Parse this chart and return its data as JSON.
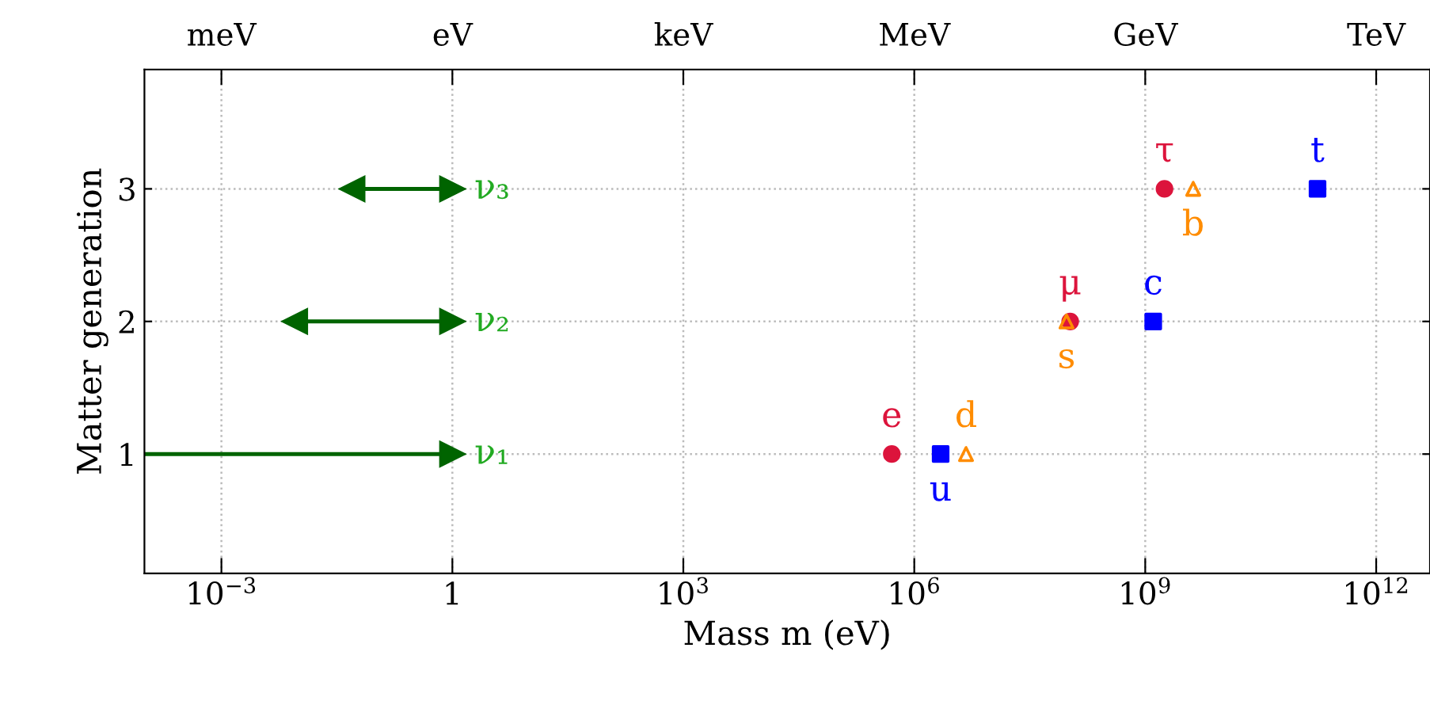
{
  "chart_data": {
    "type": "scatter",
    "xlabel": "Mass m (eV)",
    "ylabel": "Matter generation",
    "log": "x",
    "grid": true,
    "legend": false,
    "xlim": [
      0.0001,
      5000000000000.0
    ],
    "ylim": [
      0.1,
      3.9
    ],
    "xticks": [
      {
        "value": 0.001,
        "label": "10$^{−3}$"
      },
      1,
      {
        "value": 1000,
        "label": "10$^{3}$"
      },
      {
        "value": 1000000,
        "label": "10$^{6}$"
      },
      {
        "value": 1000000000,
        "label": "10$^{9}$"
      },
      {
        "value": 1000000000000,
        "label": "10$^{12}$"
      }
    ],
    "annotations": [
      "meV",
      "eV",
      "keV",
      "MeV",
      "GeV",
      "TeV"
    ],
    "yticks": [
      1,
      2,
      3
    ],
    "series": [
      {
        "type": "line",
        "name": "ν₁",
        "color": "#006400",
        "marker": "triangle",
        "x": [
          0.0001,
          1
        ],
        "values": [
          1,
          1
        ]
      },
      {
        "type": "line",
        "name": "ν₂",
        "color": "#006400",
        "marker": "triangle",
        "x": [
          0.009,
          1
        ],
        "values": [
          2,
          2
        ]
      },
      {
        "type": "line",
        "name": "ν₃",
        "color": "#006400",
        "marker": "triangle",
        "x": [
          0.05,
          1
        ],
        "values": [
          3,
          3
        ]
      },
      {
        "name": "e",
        "color": "#dc143c",
        "marker": "circle",
        "x": [
          510000
        ],
        "values": [
          1
        ]
      },
      {
        "name": "d",
        "color": "#ff8c00",
        "marker": "triangle",
        "x": [
          4700000
        ],
        "values": [
          1
        ]
      },
      {
        "name": "u",
        "color": "#0000ff",
        "marker": "square",
        "x": [
          2200000
        ],
        "values": [
          1
        ]
      },
      {
        "name": "μ",
        "color": "#dc143c",
        "marker": "circle",
        "x": [
          106000000
        ],
        "values": [
          2
        ]
      },
      {
        "name": "s",
        "color": "#ff8c00",
        "marker": "triangle",
        "x": [
          95000000
        ],
        "values": [
          2
        ]
      },
      {
        "name": "τ",
        "color": "#dc143c",
        "marker": "circle",
        "x": [
          1780000000
        ],
        "values": [
          3
        ]
      },
      {
        "name": "b",
        "color": "#ff8c00",
        "marker": "triangle",
        "x": [
          4200000000
        ],
        "values": [
          3
        ]
      },
      {
        "name": "c",
        "color": "#0000ff",
        "marker": "square",
        "x": [
          1270000000
        ],
        "values": [
          2
        ]
      },
      {
        "name": "t",
        "color": "#0000ff",
        "marker": "square",
        "x": [
          173000000000
        ],
        "values": [
          3
        ]
      }
    ]
  }
}
